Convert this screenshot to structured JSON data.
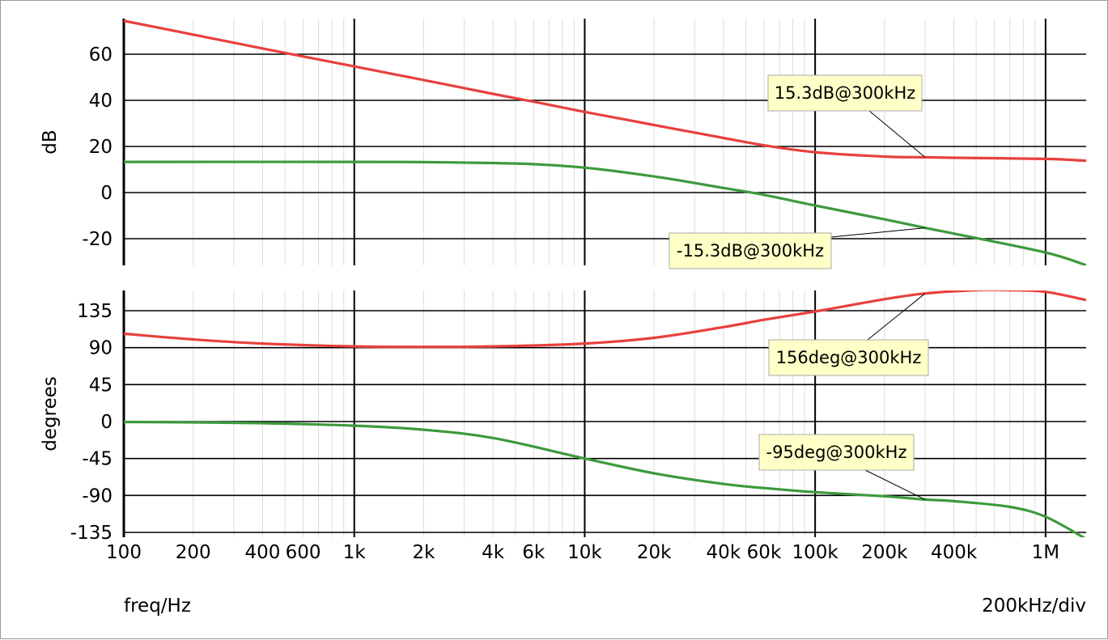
{
  "chart_data": [
    {
      "type": "line",
      "panel": "magnitude",
      "title": "",
      "xlabel": "freq/Hz",
      "ylabel": "dB",
      "xscale": "log",
      "xlim": [
        100,
        1500000
      ],
      "ylim": [
        -32,
        75
      ],
      "yticks": [
        60,
        40,
        20,
        0,
        -20
      ],
      "ytick_labels": [
        "60",
        "40",
        "20",
        "0",
        "-20"
      ],
      "grid": true,
      "series": [
        {
          "color": "#e8403c",
          "x": [
            100,
            200,
            400,
            600,
            1000,
            2000,
            4000,
            6000,
            10000,
            20000,
            40000,
            60000,
            100000,
            200000,
            300000,
            400000,
            1000000,
            1500000
          ],
          "y": [
            74.5,
            68.5,
            62.5,
            59.0,
            54.7,
            48.8,
            42.8,
            39.4,
            35.0,
            29.3,
            23.7,
            20.5,
            17.5,
            15.6,
            15.3,
            15.1,
            14.6,
            13.8
          ]
        },
        {
          "color": "#3c9a3c",
          "x": [
            100,
            1000,
            2000,
            4000,
            6000,
            10000,
            20000,
            40000,
            60000,
            100000,
            200000,
            300000,
            400000,
            1000000,
            1500000
          ],
          "y": [
            13.3,
            13.3,
            13.2,
            12.8,
            12.3,
            10.8,
            7.0,
            2.0,
            -1.0,
            -5.6,
            -11.6,
            -15.3,
            -17.8,
            -26.0,
            -31.5
          ]
        }
      ],
      "annotations": [
        {
          "text": "15.3dB@300kHz",
          "x": 300000,
          "y": 15.3
        },
        {
          "text": "-15.3dB@300kHz",
          "x": 300000,
          "y": -15.3
        }
      ]
    },
    {
      "type": "line",
      "panel": "phase",
      "title": "",
      "xlabel": "freq/Hz",
      "ylabel": "degrees",
      "xscale": "log",
      "xlim": [
        100,
        1500000
      ],
      "ylim": [
        -137,
        165
      ],
      "yticks": [
        135,
        90,
        45,
        0,
        -45,
        -90,
        -135
      ],
      "ytick_labels": [
        "135",
        "90",
        "45",
        "0",
        "-45",
        "-90",
        "-135"
      ],
      "grid": true,
      "series": [
        {
          "color": "#e8403c",
          "x": [
            100,
            200,
            400,
            1000,
            2000,
            4000,
            10000,
            20000,
            40000,
            60000,
            100000,
            200000,
            300000,
            500000,
            700000,
            1000000,
            1500000
          ],
          "y": [
            107,
            100,
            95,
            91.5,
            91,
            91.5,
            95,
            102,
            115,
            124,
            134,
            149,
            156,
            160,
            160,
            158,
            148
          ]
        },
        {
          "color": "#3c9a3c",
          "x": [
            100,
            200,
            400,
            1000,
            2000,
            4000,
            10000,
            20000,
            40000,
            60000,
            100000,
            200000,
            300000,
            400000,
            700000,
            1000000,
            1500000
          ],
          "y": [
            -0.5,
            -1,
            -2,
            -5,
            -10,
            -20,
            -45,
            -63,
            -76,
            -81,
            -86,
            -91,
            -95,
            -97,
            -104,
            -116,
            -143
          ]
        }
      ],
      "annotations": [
        {
          "text": "156deg@300kHz",
          "x": 300000,
          "y": 156
        },
        {
          "text": "-95deg@300kHz",
          "x": 300000,
          "y": -95
        }
      ]
    }
  ],
  "x_ticks": [
    {
      "value": 100,
      "label": "100"
    },
    {
      "value": 200,
      "label": "200"
    },
    {
      "value": 400,
      "label": "400"
    },
    {
      "value": 600,
      "label": "600"
    },
    {
      "value": 1000,
      "label": "1k"
    },
    {
      "value": 2000,
      "label": "2k"
    },
    {
      "value": 4000,
      "label": "4k"
    },
    {
      "value": 6000,
      "label": "6k"
    },
    {
      "value": 10000,
      "label": "10k"
    },
    {
      "value": 20000,
      "label": "20k"
    },
    {
      "value": 40000,
      "label": "40k"
    },
    {
      "value": 60000,
      "label": "60k"
    },
    {
      "value": 100000,
      "label": "100k"
    },
    {
      "value": 200000,
      "label": "200k"
    },
    {
      "value": 400000,
      "label": "400k"
    },
    {
      "value": 1000000,
      "label": "1M"
    }
  ],
  "footer": {
    "xlabel": "freq/Hz",
    "scale": "200kHz/div"
  }
}
